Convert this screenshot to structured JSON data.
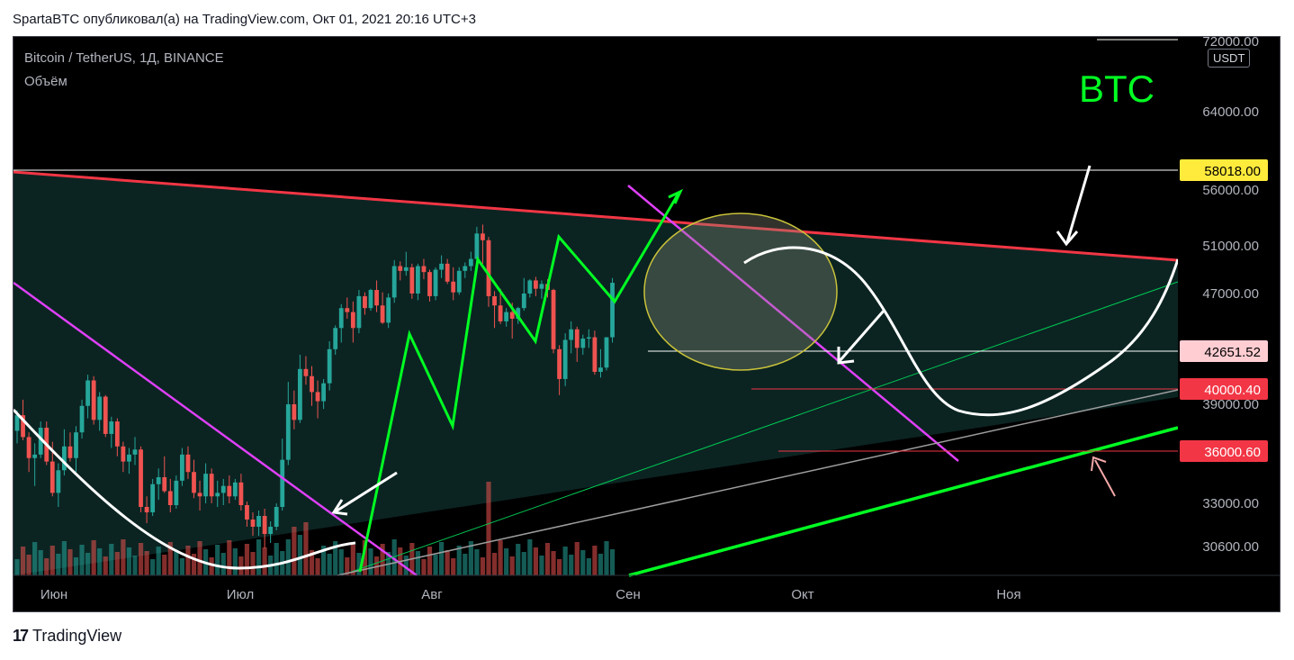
{
  "header": {
    "text": "SpartaBTC опубликовал(а) на TradingView.com, Окт 01, 2021 20:16 UTC+3"
  },
  "chart_title": "Bitcoin / TetherUS, 1Д, BINANCE",
  "chart_subtitle": "Объём",
  "annotation": "BTC",
  "currency": "USDT",
  "footer": {
    "brand": "TradingView",
    "logo": "17"
  },
  "colors": {
    "up": "#26a69a",
    "down": "#ef5350",
    "trend_red": "#f23645",
    "magenta": "#e040fb",
    "green": "#00e676",
    "green_bright": "#00ff22"
  },
  "chart_data": {
    "type": "candlestick",
    "title": "Bitcoin / TetherUS, 1Д, BINANCE",
    "y_axis": {
      "ticks": [
        "72000.00",
        "64000.00",
        "56000.00",
        "51000.00",
        "47000.00",
        "39000.00",
        "33000.00",
        "30600.00"
      ],
      "tick_values": [
        72000,
        64000,
        56000,
        51000,
        47000,
        39000,
        33000,
        30600
      ],
      "range": [
        28500,
        73000
      ]
    },
    "x_axis": {
      "labels": [
        "Июн",
        "Июл",
        "Авг",
        "Сен",
        "Окт",
        "Ноя"
      ]
    },
    "price_labels": [
      {
        "text": "58018.00",
        "value": 58018,
        "bg": "#ffeb3b",
        "fg": "#000000"
      },
      {
        "text": "42651.52",
        "value": 42651.52,
        "bg": "#ffcdd2",
        "fg": "#000000"
      },
      {
        "text": "40000.40",
        "value": 40000.4,
        "bg": "#f23645",
        "fg": "#ffffff"
      },
      {
        "text": "36000.60",
        "value": 36000.6,
        "bg": "#f23645",
        "fg": "#ffffff"
      }
    ],
    "candles_ohlc_sample": [
      [
        37300,
        38600,
        36500,
        38300
      ],
      [
        38300,
        39300,
        36700,
        36900
      ],
      [
        36900,
        37200,
        34800,
        35600
      ],
      [
        35600,
        36500,
        34000,
        35800
      ],
      [
        35800,
        37900,
        35600,
        37500
      ],
      [
        37500,
        37900,
        35200,
        35400
      ],
      [
        35400,
        36600,
        33400,
        33600
      ],
      [
        33600,
        35300,
        32800,
        34900
      ],
      [
        34900,
        37400,
        34600,
        36300
      ],
      [
        36300,
        37200,
        35400,
        35600
      ],
      [
        35600,
        37600,
        34800,
        37200
      ],
      [
        37200,
        39300,
        36800,
        38900
      ],
      [
        38900,
        41000,
        38100,
        40600
      ],
      [
        40600,
        40900,
        37700,
        38000
      ],
      [
        38000,
        39800,
        37300,
        39500
      ],
      [
        39500,
        39600,
        36900,
        37100
      ],
      [
        37100,
        38200,
        36200,
        37900
      ],
      [
        37900,
        38100,
        35700,
        36300
      ],
      [
        36300,
        36600,
        34800,
        35400
      ],
      [
        35400,
        36200,
        34700,
        35800
      ],
      [
        35800,
        36900,
        35200,
        36100
      ],
      [
        36100,
        36300,
        32500,
        32800
      ],
      [
        32800,
        33400,
        31900,
        32500
      ],
      [
        32500,
        34400,
        32300,
        34100
      ],
      [
        34100,
        35000,
        33200,
        34500
      ],
      [
        34500,
        35700,
        33600,
        33700
      ],
      [
        33700,
        34400,
        32500,
        32900
      ],
      [
        32900,
        34600,
        32700,
        34300
      ],
      [
        34300,
        36200,
        34000,
        35800
      ],
      [
        35800,
        36300,
        34400,
        34800
      ],
      [
        34800,
        35500,
        33300,
        33600
      ],
      [
        33600,
        34300,
        32600,
        33400
      ],
      [
        33400,
        35300,
        33000,
        34700
      ],
      [
        34700,
        35000,
        33000,
        33400
      ],
      [
        33400,
        34300,
        32800,
        33600
      ],
      [
        33600,
        34400,
        32900,
        34000
      ],
      [
        34000,
        34600,
        33000,
        33400
      ],
      [
        33400,
        34400,
        33200,
        34200
      ],
      [
        34200,
        34700,
        32600,
        32900
      ],
      [
        32900,
        33100,
        31700,
        32100
      ],
      [
        32100,
        32500,
        31200,
        31700
      ],
      [
        31700,
        32600,
        31200,
        32300
      ],
      [
        32300,
        32700,
        30500,
        31300
      ],
      [
        31300,
        32000,
        30800,
        31700
      ],
      [
        31700,
        33000,
        31500,
        32800
      ],
      [
        32800,
        36800,
        32600,
        35500
      ],
      [
        35500,
        40500,
        35200,
        39000
      ],
      [
        39000,
        39900,
        37400,
        38000
      ],
      [
        38000,
        42400,
        37800,
        41400
      ],
      [
        41400,
        42300,
        40300,
        40900
      ],
      [
        40900,
        41600,
        38900,
        39800
      ],
      [
        39800,
        40600,
        38100,
        39200
      ],
      [
        39200,
        40700,
        38700,
        40400
      ],
      [
        40400,
        43400,
        39900,
        42800
      ],
      [
        42800,
        44600,
        42400,
        44400
      ],
      [
        44400,
        46200,
        43300,
        45900
      ],
      [
        45900,
        46700,
        45100,
        45600
      ],
      [
        45600,
        46400,
        43300,
        44400
      ],
      [
        44400,
        47300,
        44000,
        46800
      ],
      [
        46800,
        47100,
        45400,
        45900
      ],
      [
        45900,
        47400,
        45700,
        47300
      ],
      [
        47300,
        48100,
        45600,
        46100
      ],
      [
        46100,
        47100,
        44700,
        44800
      ],
      [
        44800,
        47000,
        44400,
        46700
      ],
      [
        46700,
        49800,
        46300,
        49300
      ],
      [
        49300,
        49700,
        48100,
        48900
      ],
      [
        48900,
        50500,
        48500,
        49200
      ],
      [
        49200,
        49500,
        46600,
        47000
      ],
      [
        47000,
        49500,
        46500,
        49300
      ],
      [
        49300,
        49900,
        48200,
        48800
      ],
      [
        48800,
        49000,
        46400,
        46800
      ],
      [
        46800,
        49200,
        46500,
        49000
      ],
      [
        49000,
        50200,
        48300,
        49500
      ],
      [
        49500,
        49900,
        47800,
        48000
      ],
      [
        48000,
        49200,
        46500,
        47100
      ],
      [
        47100,
        49200,
        46900,
        48900
      ],
      [
        48900,
        49600,
        48300,
        49300
      ],
      [
        49300,
        50500,
        48900,
        49900
      ],
      [
        49900,
        52700,
        49400,
        52100
      ],
      [
        52100,
        52900,
        49500,
        51500
      ],
      [
        51500,
        51800,
        46000,
        46800
      ],
      [
        46800,
        47200,
        44400,
        46100
      ],
      [
        46100,
        47400,
        44700,
        44900
      ],
      [
        44900,
        45900,
        44500,
        45600
      ],
      [
        45600,
        46300,
        43600,
        45100
      ],
      [
        45100,
        46000,
        44700,
        45900
      ],
      [
        45900,
        48300,
        45700,
        47000
      ],
      [
        47000,
        48200,
        46700,
        48100
      ],
      [
        48100,
        48400,
        46800,
        47400
      ],
      [
        47400,
        48100,
        46600,
        47800
      ],
      [
        47800,
        48200,
        46700,
        47300
      ],
      [
        47300,
        47400,
        42500,
        42800
      ],
      [
        42800,
        43100,
        39600,
        40700
      ],
      [
        40700,
        44000,
        40200,
        43500
      ],
      [
        43500,
        44900,
        42500,
        44300
      ],
      [
        44300,
        44500,
        41900,
        42900
      ],
      [
        42900,
        43900,
        42400,
        43600
      ],
      [
        43600,
        44300,
        42900,
        43700
      ],
      [
        43700,
        44200,
        41000,
        41200
      ],
      [
        41200,
        42800,
        40800,
        41500
      ],
      [
        41500,
        43700,
        41300,
        43700
      ],
      [
        43700,
        48300,
        43300,
        47900
      ]
    ]
  }
}
